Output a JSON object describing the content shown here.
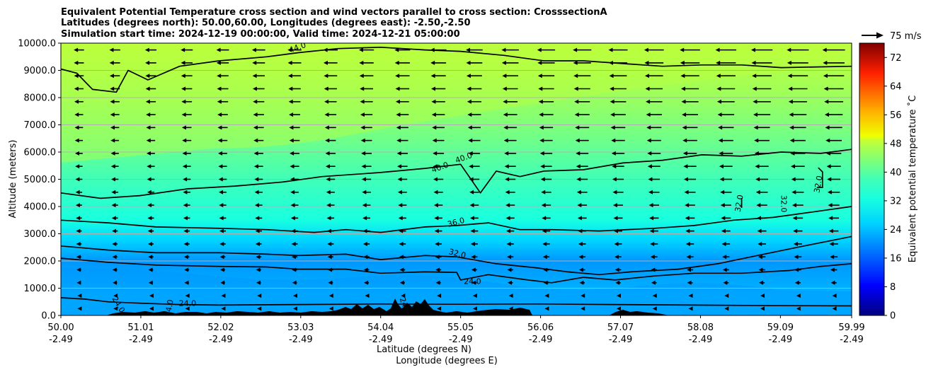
{
  "chart_data": {
    "type": "contour",
    "title": [
      "Equivalent Potential Temperature cross section and wind vectors parallel to cross section: CrosssectionA",
      "Latitudes (degrees north): 50.00,60.00, Longitudes (degrees east): -2.50,-2.50",
      "Simulation start time: 2024-12-19 00:00:00, Valid time: 2024-12-21 05:00:00"
    ],
    "xlabel_lat": "Latitude (degrees N)",
    "xlabel_lon": "Longitude (degrees E)",
    "ylabel": "Altitude (meters)",
    "xlim": [
      50.0,
      59.99
    ],
    "ylim": [
      0,
      10000
    ],
    "x_ticks": [
      {
        "lat": "50.00",
        "lon": "-2.49",
        "v": 50.0
      },
      {
        "lat": "51.01",
        "lon": "-2.49",
        "v": 51.01
      },
      {
        "lat": "52.02",
        "lon": "-2.49",
        "v": 52.02
      },
      {
        "lat": "53.03",
        "lon": "-2.49",
        "v": 53.03
      },
      {
        "lat": "54.04",
        "lon": "-2.49",
        "v": 54.04
      },
      {
        "lat": "55.05",
        "lon": "-2.49",
        "v": 55.05
      },
      {
        "lat": "56.06",
        "lon": "-2.49",
        "v": 56.06
      },
      {
        "lat": "57.07",
        "lon": "-2.49",
        "v": 57.07
      },
      {
        "lat": "58.08",
        "lon": "-2.49",
        "v": 58.08
      },
      {
        "lat": "59.09",
        "lon": "-2.49",
        "v": 59.09
      },
      {
        "lat": "59.99",
        "lon": "-2.49",
        "v": 59.99
      }
    ],
    "y_ticks": [
      {
        "label": "0.0",
        "v": 0
      },
      {
        "label": "1000.0",
        "v": 1000
      },
      {
        "label": "2000.0",
        "v": 2000
      },
      {
        "label": "3000.0",
        "v": 3000
      },
      {
        "label": "4000.0",
        "v": 4000
      },
      {
        "label": "5000.0",
        "v": 5000
      },
      {
        "label": "6000.0",
        "v": 6000
      },
      {
        "label": "7000.0",
        "v": 7000
      },
      {
        "label": "8000.0",
        "v": 8000
      },
      {
        "label": "9000.0",
        "v": 9000
      },
      {
        "label": "10000.0",
        "v": 10000
      }
    ],
    "grid": "horizontal",
    "colorbar": {
      "label": "Equivalent potential temperature ˚C",
      "range": [
        0,
        76
      ],
      "ticks": [
        "0",
        "8",
        "16",
        "24",
        "32",
        "40",
        "48",
        "56",
        "64",
        "72"
      ],
      "colormap": "jet"
    },
    "quiver_key": {
      "label": "75 m/s",
      "value": 75
    },
    "contour_lines": [
      {
        "level": 24.0,
        "points": [
          [
            50.0,
            650
          ],
          [
            50.3,
            600
          ],
          [
            50.6,
            500
          ],
          [
            51.0,
            450
          ],
          [
            51.5,
            400
          ],
          [
            52.0,
            380
          ],
          [
            53.0,
            400
          ],
          [
            54.0,
            420
          ],
          [
            55.0,
            410
          ],
          [
            56.0,
            420
          ],
          [
            57.0,
            400
          ],
          [
            58.0,
            380
          ],
          [
            59.0,
            360
          ],
          [
            59.99,
            350
          ]
        ]
      },
      {
        "level": 24.0,
        "points": [
          [
            50.0,
            2100
          ],
          [
            50.6,
            1950
          ],
          [
            51.2,
            1850
          ],
          [
            52.0,
            1800
          ],
          [
            52.6,
            1780
          ],
          [
            53.0,
            1700
          ],
          [
            53.6,
            1700
          ],
          [
            54.04,
            1550
          ],
          [
            54.6,
            1600
          ],
          [
            55.0,
            1580
          ],
          [
            55.05,
            1300
          ],
          [
            55.4,
            1500
          ],
          [
            55.9,
            1300
          ],
          [
            56.2,
            1200
          ],
          [
            56.6,
            1400
          ],
          [
            57.0,
            1300
          ],
          [
            57.5,
            1450
          ],
          [
            58.0,
            1550
          ],
          [
            58.6,
            1550
          ],
          [
            59.2,
            1650
          ],
          [
            59.6,
            1800
          ],
          [
            59.99,
            1900
          ]
        ]
      },
      {
        "level": 32.0,
        "points": [
          [
            50.0,
            2550
          ],
          [
            50.6,
            2400
          ],
          [
            51.2,
            2300
          ],
          [
            52.0,
            2300
          ],
          [
            52.6,
            2250
          ],
          [
            53.0,
            2200
          ],
          [
            53.6,
            2250
          ],
          [
            54.04,
            2050
          ],
          [
            54.6,
            2200
          ],
          [
            55.0,
            2150
          ],
          [
            55.5,
            1900
          ],
          [
            56.0,
            1750
          ],
          [
            56.4,
            1600
          ],
          [
            56.8,
            1500
          ],
          [
            57.2,
            1600
          ],
          [
            57.8,
            1700
          ],
          [
            58.3,
            1900
          ],
          [
            58.8,
            2200
          ],
          [
            59.3,
            2500
          ],
          [
            59.99,
            2900
          ]
        ]
      },
      {
        "level": 36.0,
        "points": [
          [
            50.0,
            3500
          ],
          [
            50.6,
            3400
          ],
          [
            51.2,
            3250
          ],
          [
            52.0,
            3200
          ],
          [
            52.6,
            3150
          ],
          [
            53.2,
            3050
          ],
          [
            53.6,
            3150
          ],
          [
            54.04,
            3050
          ],
          [
            54.6,
            3250
          ],
          [
            55.0,
            3300
          ],
          [
            55.4,
            3400
          ],
          [
            55.8,
            3150
          ],
          [
            56.2,
            3150
          ],
          [
            56.8,
            3100
          ],
          [
            57.5,
            3200
          ],
          [
            58.0,
            3300
          ],
          [
            58.5,
            3500
          ],
          [
            59.0,
            3600
          ],
          [
            59.5,
            3800
          ],
          [
            59.99,
            4000
          ]
        ]
      },
      {
        "level": 40.0,
        "points": [
          [
            50.0,
            4500
          ],
          [
            50.5,
            4300
          ],
          [
            51.0,
            4400
          ],
          [
            51.6,
            4650
          ],
          [
            52.2,
            4750
          ],
          [
            52.8,
            4900
          ],
          [
            53.3,
            5100
          ],
          [
            53.8,
            5200
          ],
          [
            54.04,
            5250
          ],
          [
            54.6,
            5400
          ],
          [
            55.05,
            5550
          ],
          [
            55.3,
            4500
          ],
          [
            55.5,
            5300
          ],
          [
            55.8,
            5100
          ],
          [
            56.1,
            5300
          ],
          [
            56.6,
            5350
          ],
          [
            57.1,
            5600
          ],
          [
            57.6,
            5700
          ],
          [
            58.1,
            5900
          ],
          [
            58.6,
            5850
          ],
          [
            59.1,
            6000
          ],
          [
            59.6,
            5950
          ],
          [
            59.99,
            6100
          ]
        ]
      },
      {
        "level": 44.0,
        "points": [
          [
            50.0,
            9050
          ],
          [
            50.2,
            8900
          ],
          [
            50.4,
            8300
          ],
          [
            50.7,
            8200
          ],
          [
            50.85,
            9000
          ],
          [
            51.1,
            8650
          ],
          [
            51.5,
            9150
          ],
          [
            52.0,
            9350
          ],
          [
            52.6,
            9500
          ],
          [
            53.0,
            9650
          ],
          [
            53.5,
            9800
          ],
          [
            54.04,
            9850
          ],
          [
            54.6,
            9750
          ],
          [
            55.05,
            9700
          ],
          [
            55.6,
            9550
          ],
          [
            56.1,
            9350
          ],
          [
            56.6,
            9350
          ],
          [
            57.1,
            9250
          ],
          [
            57.6,
            9150
          ],
          [
            58.1,
            9200
          ],
          [
            58.6,
            9200
          ],
          [
            59.1,
            9100
          ],
          [
            59.99,
            9150
          ]
        ]
      }
    ],
    "contour_labels": [
      {
        "text": "44.0",
        "x": 53.0,
        "y": 9750,
        "rot": -20
      },
      {
        "text": "40.0",
        "x": 54.8,
        "y": 5350,
        "rot": -20
      },
      {
        "text": "40.0",
        "x": 55.1,
        "y": 5700,
        "rot": -20
      },
      {
        "text": "36.0",
        "x": 55.0,
        "y": 3330,
        "rot": -15
      },
      {
        "text": "32.0",
        "x": 55.0,
        "y": 2180,
        "rot": 15
      },
      {
        "text": "24.0",
        "x": 55.2,
        "y": 1150,
        "rot": 0
      },
      {
        "text": "24.0",
        "x": 51.6,
        "y": 350,
        "rot": 0
      },
      {
        "text": "24.0",
        "x": 50.7,
        "y": 350,
        "rot": 60
      },
      {
        "text": "24.0",
        "x": 51.4,
        "y": 250,
        "rot": -80
      },
      {
        "text": "24",
        "x": 54.3,
        "y": 450,
        "rot": 70
      },
      {
        "text": "32.0",
        "x": 58.6,
        "y": 4100,
        "rot": -80
      },
      {
        "text": "32.0",
        "x": 59.1,
        "y": 4100,
        "rot": 90
      },
      {
        "text": "32.0",
        "x": 59.6,
        "y": 4800,
        "rot": -80
      }
    ],
    "terrain": {
      "color": "#000000"
    },
    "wind": {
      "direction": "left",
      "max_speed": 75
    }
  }
}
